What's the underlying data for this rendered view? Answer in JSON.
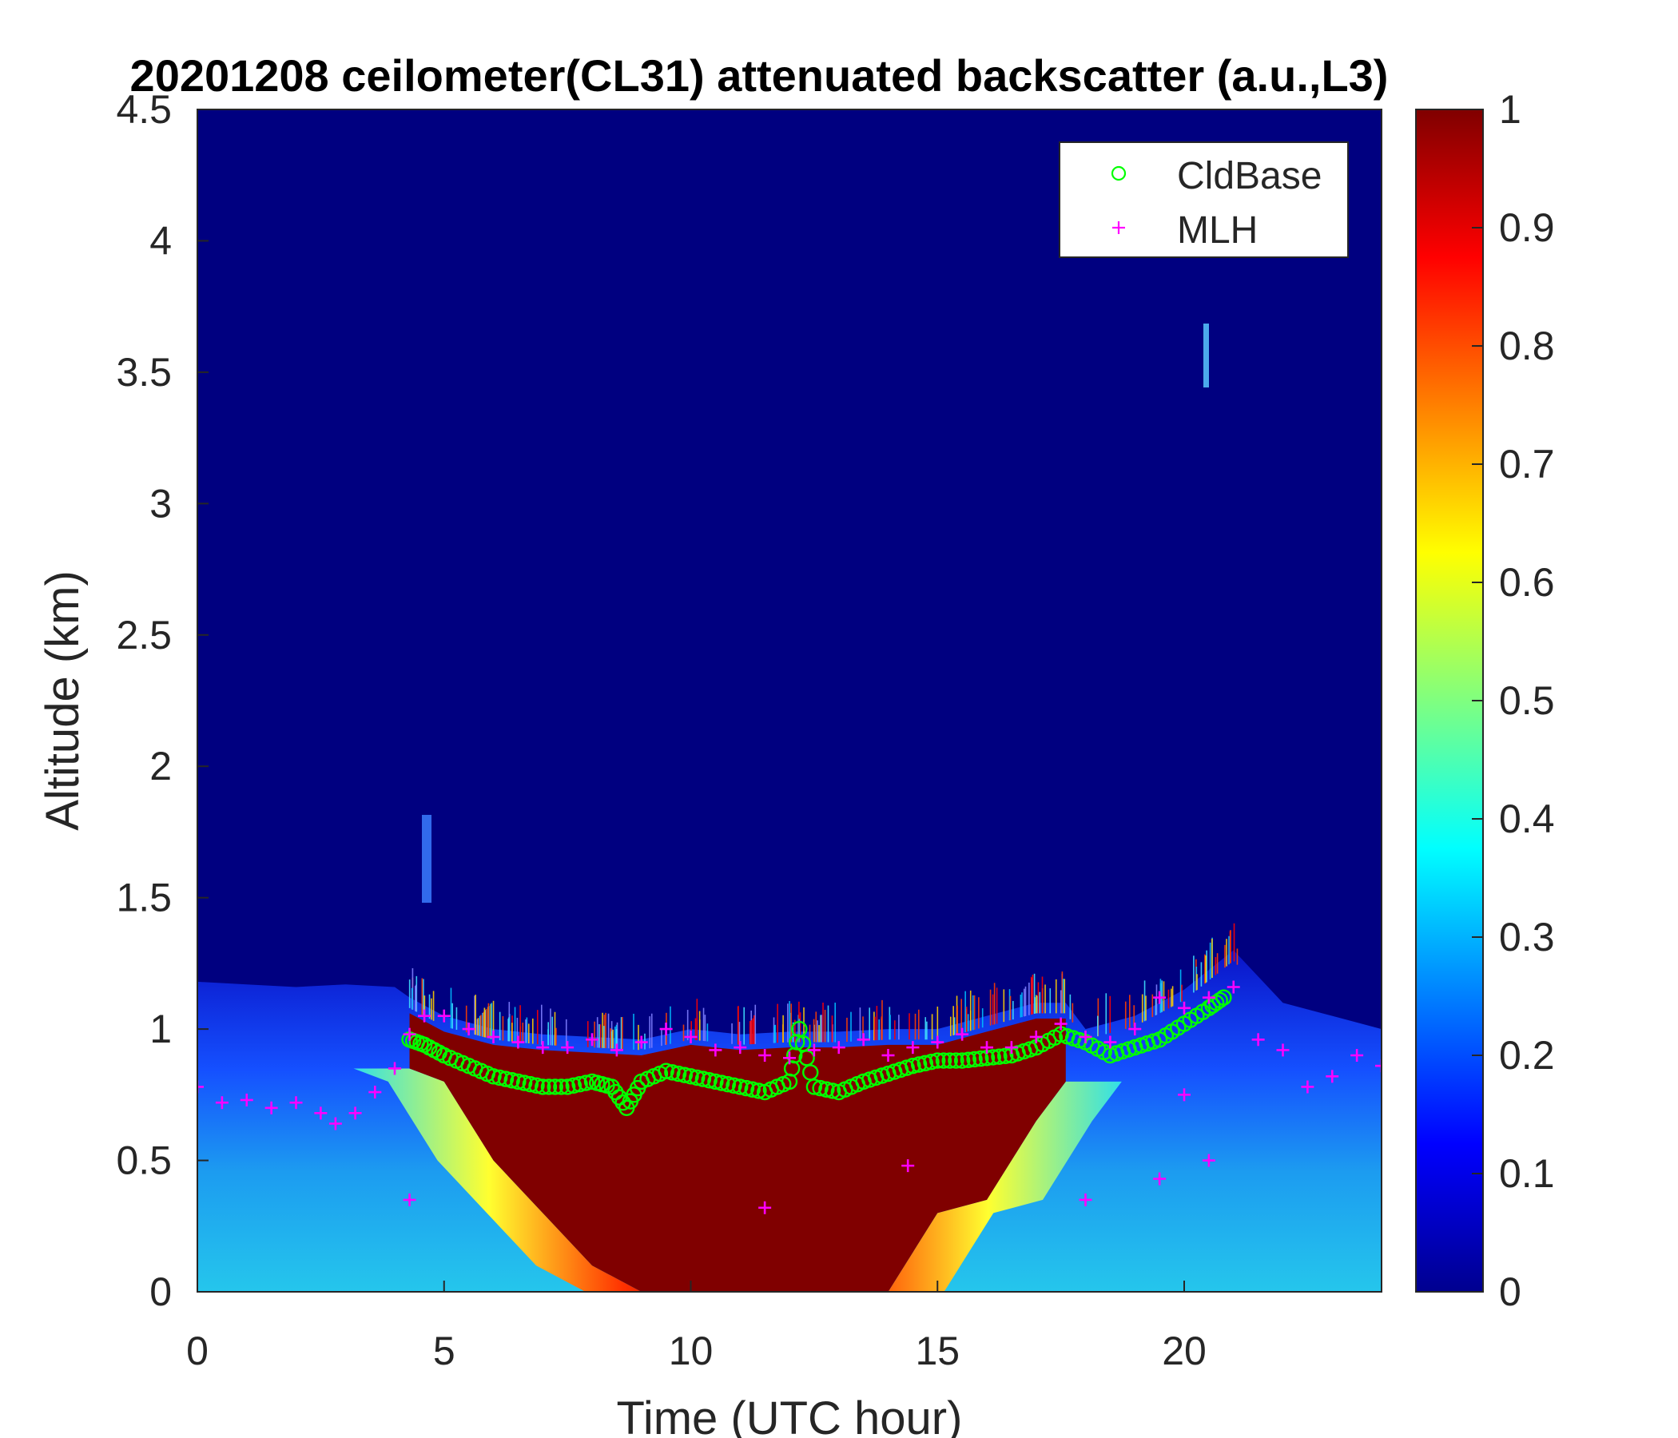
{
  "chart_data": {
    "type": "heatmap",
    "title": "20201208 ceilometer(CL31) attenuated backscatter (a.u.,L3)",
    "xlabel": "Time (UTC hour)",
    "ylabel": "Altitude (km)",
    "xlim": [
      0,
      24
    ],
    "ylim": [
      0,
      4.5
    ],
    "xticks": [
      "0",
      "5",
      "10",
      "15",
      "20"
    ],
    "xtick_values": [
      0,
      5,
      10,
      15,
      20
    ],
    "yticks": [
      "0",
      "0.5",
      "1",
      "1.5",
      "2",
      "2.5",
      "3",
      "3.5",
      "4",
      "4.5"
    ],
    "ytick_values": [
      0,
      0.5,
      1,
      1.5,
      2,
      2.5,
      3,
      3.5,
      4,
      4.5
    ],
    "colorbar": {
      "range": [
        0,
        1
      ],
      "colormap": "jet",
      "ticks": [
        "0",
        "0.1",
        "0.2",
        "0.3",
        "0.4",
        "0.5",
        "0.6",
        "0.7",
        "0.8",
        "0.9",
        "1"
      ],
      "tick_values": [
        0,
        0.1,
        0.2,
        0.3,
        0.4,
        0.5,
        0.6,
        0.7,
        0.8,
        0.9,
        1
      ]
    },
    "legend": {
      "position": "top-right",
      "entries": [
        {
          "label": "CldBase",
          "marker": "circle",
          "color": "#00ff00"
        },
        {
          "label": "MLH",
          "marker": "plus",
          "color": "#ff00ff"
        }
      ]
    },
    "colors": {
      "background": "#000080",
      "cldbase": "#00ff00",
      "mlh": "#ff00ff",
      "strong_layer": "#800000"
    },
    "backscatter_profile": {
      "description_values": "approximate aerosol layer top (km) and intensity by hour",
      "hours": [
        0,
        1,
        2,
        3,
        4,
        4.3,
        5,
        6,
        7,
        8,
        9,
        10,
        11,
        12,
        13,
        14,
        15,
        16,
        17,
        17.6,
        18,
        19,
        20,
        21,
        22,
        23,
        24
      ],
      "layer_top_km": [
        1.18,
        1.17,
        1.16,
        1.17,
        1.16,
        1.12,
        1.05,
        1.0,
        0.98,
        0.97,
        0.96,
        1.0,
        0.98,
        0.99,
        0.99,
        1.0,
        1.0,
        1.05,
        1.1,
        1.1,
        1.0,
        1.05,
        1.15,
        1.3,
        1.1,
        1.05,
        1.0
      ],
      "strong_layer_bottom_km": [
        null,
        null,
        null,
        null,
        null,
        0.85,
        0.8,
        0.5,
        0.3,
        0.1,
        0.0,
        0.0,
        0.0,
        0.0,
        0.0,
        0.0,
        0.3,
        0.35,
        0.65,
        0.8,
        null,
        null,
        null,
        null,
        null,
        null,
        null
      ]
    },
    "series": [
      {
        "name": "CldBase",
        "marker": "circle",
        "x": [
          4.3,
          4.6,
          5.0,
          5.5,
          6.0,
          6.5,
          7.0,
          7.5,
          8.0,
          8.4,
          8.7,
          9.0,
          9.5,
          10.0,
          10.5,
          11.0,
          11.5,
          12.0,
          12.2,
          12.5,
          13.0,
          13.5,
          14.0,
          14.5,
          15.0,
          15.5,
          16.0,
          16.5,
          17.0,
          17.5,
          18.0,
          18.5,
          19.0,
          19.5,
          20.0,
          20.5,
          20.8
        ],
        "y": [
          0.96,
          0.94,
          0.9,
          0.86,
          0.82,
          0.8,
          0.78,
          0.78,
          0.8,
          0.78,
          0.7,
          0.8,
          0.84,
          0.82,
          0.8,
          0.78,
          0.76,
          0.8,
          1.0,
          0.78,
          0.76,
          0.8,
          0.83,
          0.86,
          0.88,
          0.88,
          0.89,
          0.9,
          0.93,
          0.98,
          0.95,
          0.9,
          0.93,
          0.96,
          1.02,
          1.08,
          1.12
        ]
      },
      {
        "name": "MLH",
        "marker": "plus",
        "x": [
          0,
          0.5,
          1.0,
          1.5,
          2.0,
          2.5,
          2.8,
          3.2,
          3.6,
          4.0,
          4.3,
          4.6,
          5.0,
          5.5,
          6.0,
          6.5,
          7.0,
          7.5,
          8.0,
          8.5,
          9.0,
          9.5,
          10.0,
          10.5,
          11.0,
          11.5,
          12.0,
          12.5,
          13.0,
          13.5,
          14.0,
          14.5,
          15.0,
          15.5,
          16.0,
          16.5,
          17.0,
          17.5,
          18.0,
          18.5,
          19.0,
          19.5,
          20.0,
          20.5,
          21.0,
          21.5,
          22.0,
          22.5,
          23.0,
          23.5,
          24.0,
          4.3,
          11.5,
          14.4,
          18.0,
          19.5,
          20.0,
          20.5
        ],
        "y": [
          0.78,
          0.72,
          0.73,
          0.7,
          0.72,
          0.68,
          0.64,
          0.68,
          0.76,
          0.85,
          0.98,
          1.05,
          1.05,
          1.0,
          0.97,
          0.95,
          0.93,
          0.93,
          0.96,
          0.92,
          0.95,
          1.0,
          0.97,
          0.92,
          0.93,
          0.9,
          0.89,
          0.92,
          0.93,
          0.96,
          0.9,
          0.93,
          0.95,
          0.98,
          0.93,
          0.93,
          0.97,
          1.02,
          0.97,
          0.95,
          1.0,
          1.12,
          1.08,
          1.12,
          1.16,
          0.96,
          0.92,
          0.78,
          0.82,
          0.9,
          0.86,
          0.35,
          0.32,
          0.48,
          0.35,
          0.43,
          0.75,
          0.5
        ]
      }
    ]
  }
}
